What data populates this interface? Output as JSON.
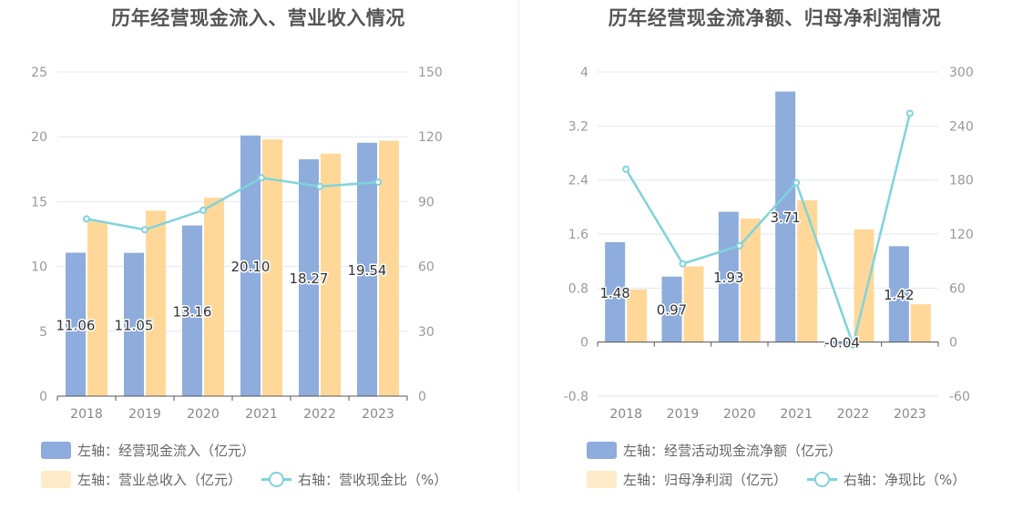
{
  "colors": {
    "bar_primary": "#8EACDC",
    "bar_secondary": "#FFD899",
    "line": "#7FD3DB",
    "grid": "#E3E6F2",
    "axis": "#555555"
  },
  "chart_data": [
    {
      "type": "bar",
      "title": "历年经营现金流入、营业收入情况",
      "categories": [
        "2018",
        "2019",
        "2020",
        "2021",
        "2022",
        "2023"
      ],
      "y_left": {
        "ticks": [
          "0",
          "5",
          "10",
          "15",
          "20",
          "25"
        ],
        "ylim": [
          0,
          25
        ]
      },
      "y_right": {
        "ticks": [
          "0",
          "30",
          "60",
          "90",
          "120",
          "150"
        ],
        "ylim": [
          0,
          150
        ]
      },
      "grid": true,
      "legend_position": "bottom-left",
      "series": [
        {
          "name": "左轴：经营现金流入（亿元）",
          "type": "bar",
          "axis": "left",
          "values": [
            11.06,
            11.05,
            13.16,
            20.1,
            18.27,
            19.54
          ],
          "labels": [
            "11.06",
            "11.05",
            "13.16",
            "20.10",
            "18.27",
            "19.54"
          ]
        },
        {
          "name": "左轴：营业总收入（亿元）",
          "type": "bar",
          "axis": "left",
          "values": [
            13.5,
            14.3,
            15.3,
            19.8,
            18.7,
            19.7
          ]
        },
        {
          "name": "右轴：营收现金比（%）",
          "type": "line",
          "axis": "right",
          "values": [
            82,
            77,
            86,
            101,
            97,
            99
          ]
        }
      ]
    },
    {
      "type": "bar",
      "title": "历年经营现金流净额、归母净利润情况",
      "categories": [
        "2018",
        "2019",
        "2020",
        "2021",
        "2022",
        "2023"
      ],
      "y_left": {
        "ticks": [
          "-0.8",
          "0",
          "0.8",
          "1.6",
          "2.4",
          "3.2",
          "4"
        ],
        "ylim": [
          -0.8,
          4
        ]
      },
      "y_right": {
        "ticks": [
          "-60",
          "0",
          "60",
          "120",
          "180",
          "240",
          "300"
        ],
        "ylim": [
          -60,
          300
        ]
      },
      "grid": true,
      "legend_position": "bottom-left",
      "series": [
        {
          "name": "左轴：经营活动现金流净额（亿元）",
          "type": "bar",
          "axis": "left",
          "values": [
            1.48,
            0.97,
            1.93,
            3.71,
            -0.04,
            1.42
          ],
          "labels": [
            "1.48",
            "0.97",
            "1.93",
            "3.71",
            "-0.04",
            "1.42"
          ]
        },
        {
          "name": "左轴：归母净利润（亿元）",
          "type": "bar",
          "axis": "left",
          "values": [
            0.78,
            1.12,
            1.83,
            2.1,
            1.67,
            0.56
          ]
        },
        {
          "name": "右轴：净现比（%）",
          "type": "line",
          "axis": "right",
          "values": [
            192,
            87,
            107,
            177,
            -3,
            254
          ]
        }
      ]
    }
  ]
}
